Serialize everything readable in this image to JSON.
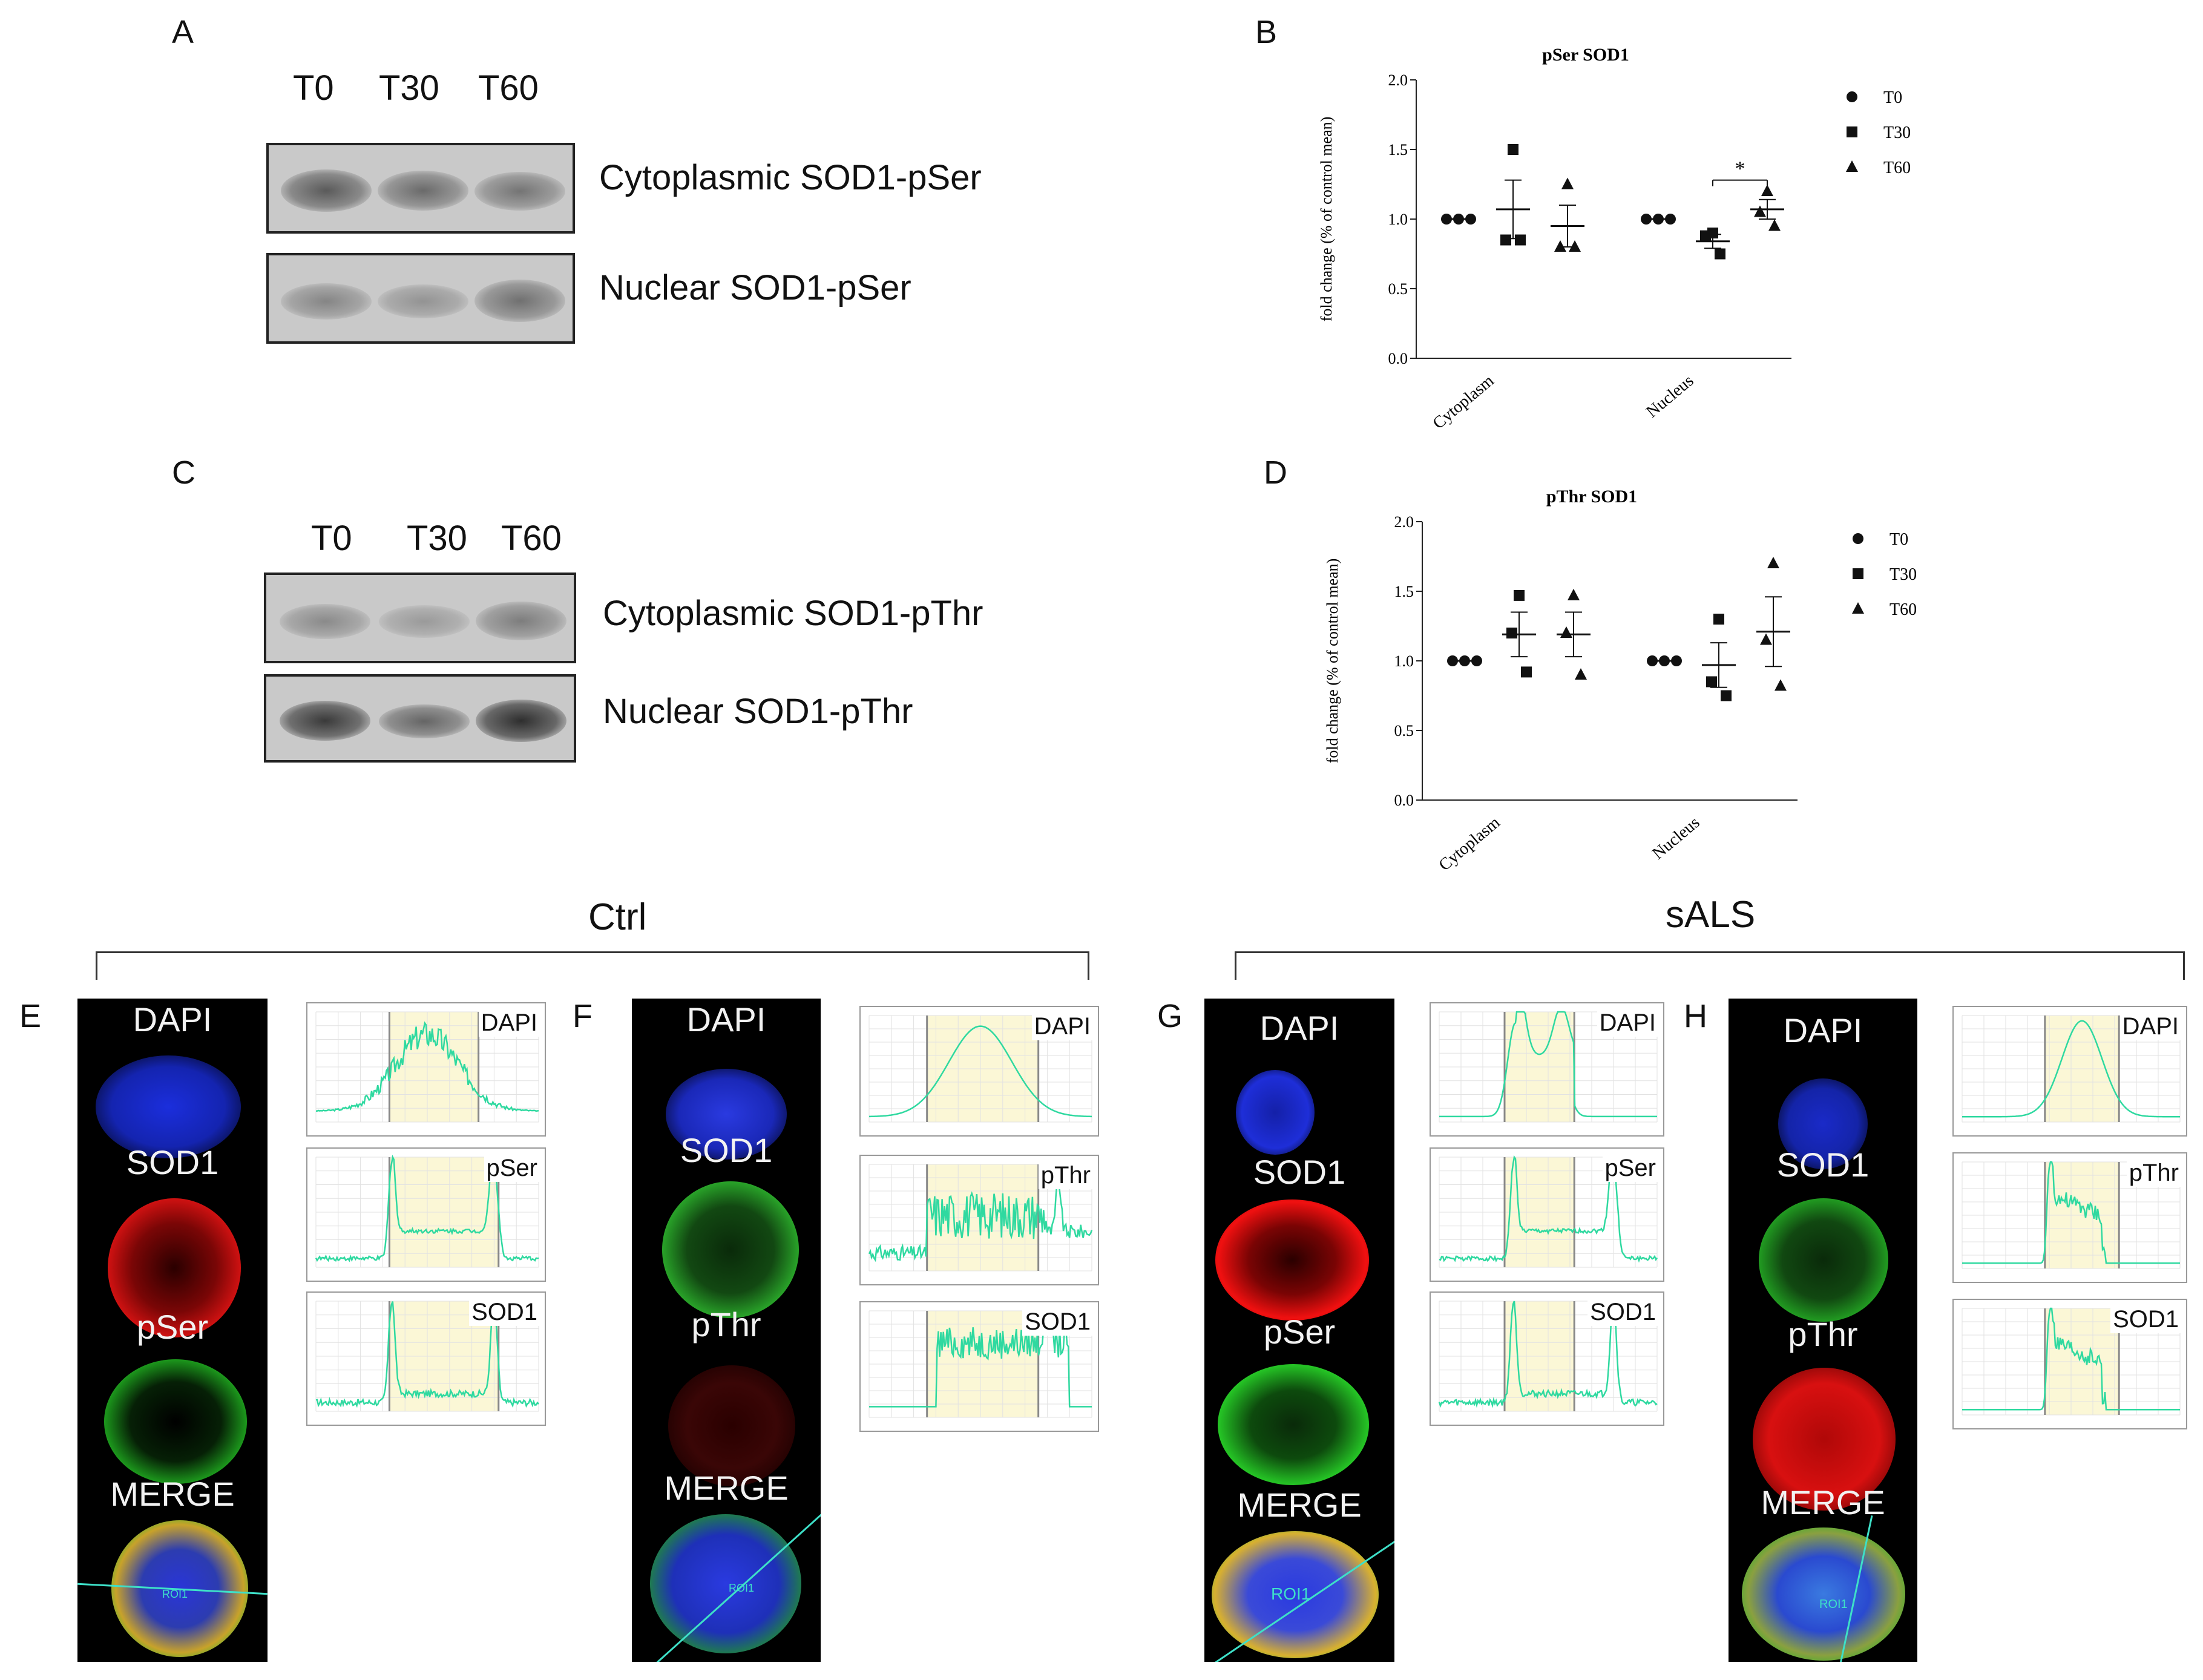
{
  "panels": {
    "A": "A",
    "B": "B",
    "C": "C",
    "D": "D",
    "E": "E",
    "F": "F",
    "G": "G",
    "H": "H"
  },
  "blotA": {
    "lanes": [
      "T0",
      "T30",
      "T60"
    ],
    "rows": [
      "Cytoplasmic SOD1-pSer",
      "Nuclear SOD1-pSer"
    ]
  },
  "blotC": {
    "lanes": [
      "T0",
      "T30",
      "T60"
    ],
    "rows": [
      "Cytoplasmic SOD1-pThr",
      "Nuclear SOD1-pThr"
    ]
  },
  "chart_data": [
    {
      "type": "scatter",
      "title": "pSer SOD1",
      "ylabel": "fold change (% of control mean)",
      "ylim": [
        0,
        2.0
      ],
      "yticks": [
        "0.0",
        "0.5",
        "1.0",
        "1.5",
        "2.0"
      ],
      "categories": [
        "Cytoplasm",
        "Nucleus"
      ],
      "legend": [
        "T0",
        "T30",
        "T60"
      ],
      "legend_position": "right",
      "series": [
        {
          "name": "T0",
          "marker": "circle",
          "groups": [
            [
              1.0,
              1.0,
              1.0
            ],
            [
              1.0,
              1.0,
              1.0
            ]
          ],
          "mean": [
            1.0,
            1.0
          ],
          "sem": [
            0,
            0
          ]
        },
        {
          "name": "T30",
          "marker": "square",
          "groups": [
            [
              1.5,
              0.85,
              0.85
            ],
            [
              0.9,
              0.88,
              0.75
            ]
          ],
          "mean": [
            1.07,
            0.84
          ],
          "sem": [
            0.21,
            0.05
          ]
        },
        {
          "name": "T60",
          "marker": "triangle",
          "groups": [
            [
              1.25,
              0.8,
              0.8
            ],
            [
              1.2,
              1.05,
              0.95
            ]
          ],
          "mean": [
            0.95,
            1.07
          ],
          "sem": [
            0.15,
            0.07
          ]
        }
      ],
      "annotation": "*"
    },
    {
      "type": "scatter",
      "title": "pThr SOD1",
      "ylabel": "fold change (% of control mean)",
      "ylim": [
        0,
        2.0
      ],
      "yticks": [
        "0.0",
        "0.5",
        "1.0",
        "1.5",
        "2.0"
      ],
      "categories": [
        "Cytoplasm",
        "Nucleus"
      ],
      "legend": [
        "T0",
        "T30",
        "T60"
      ],
      "legend_position": "right",
      "series": [
        {
          "name": "T0",
          "marker": "circle",
          "groups": [
            [
              1.0,
              1.0,
              1.0
            ],
            [
              1.0,
              1.0,
              1.0
            ]
          ],
          "mean": [
            1.0,
            1.0
          ],
          "sem": [
            0,
            0
          ]
        },
        {
          "name": "T30",
          "marker": "square",
          "groups": [
            [
              1.47,
              1.2,
              0.92
            ],
            [
              1.3,
              0.85,
              0.75
            ]
          ],
          "mean": [
            1.19,
            0.97
          ],
          "sem": [
            0.16,
            0.16
          ]
        },
        {
          "name": "T60",
          "marker": "triangle",
          "groups": [
            [
              1.47,
              1.2,
              0.9
            ],
            [
              1.7,
              1.15,
              0.82
            ]
          ],
          "mean": [
            1.19,
            1.21
          ],
          "sem": [
            0.16,
            0.25
          ]
        }
      ]
    }
  ],
  "groups": {
    "ctrl": "Ctrl",
    "sals": "sALS"
  },
  "microE": {
    "channels": [
      "DAPI",
      "SOD1",
      "pSer",
      "MERGE"
    ],
    "roi": "ROI1",
    "profiles": [
      "DAPI",
      "pSer",
      "SOD1"
    ]
  },
  "microF": {
    "channels": [
      "DAPI",
      "SOD1",
      "pThr",
      "MERGE"
    ],
    "roi": "ROI1",
    "profiles": [
      "DAPI",
      "pThr",
      "SOD1"
    ]
  },
  "microG": {
    "channels": [
      "DAPI",
      "SOD1",
      "pSer",
      "MERGE"
    ],
    "roi": "ROI1",
    "profiles": [
      "DAPI",
      "pSer",
      "SOD1"
    ]
  },
  "microH": {
    "channels": [
      "DAPI",
      "SOD1",
      "pThr",
      "MERGE"
    ],
    "roi": "ROI1",
    "profiles": [
      "DAPI",
      "pThr",
      "SOD1"
    ]
  },
  "colors": {
    "dapi": "#1a2ad8",
    "red": "#e01010",
    "green": "#1fb51f",
    "trace": "#2fd9a0",
    "highlight": "#fbf7d6"
  }
}
